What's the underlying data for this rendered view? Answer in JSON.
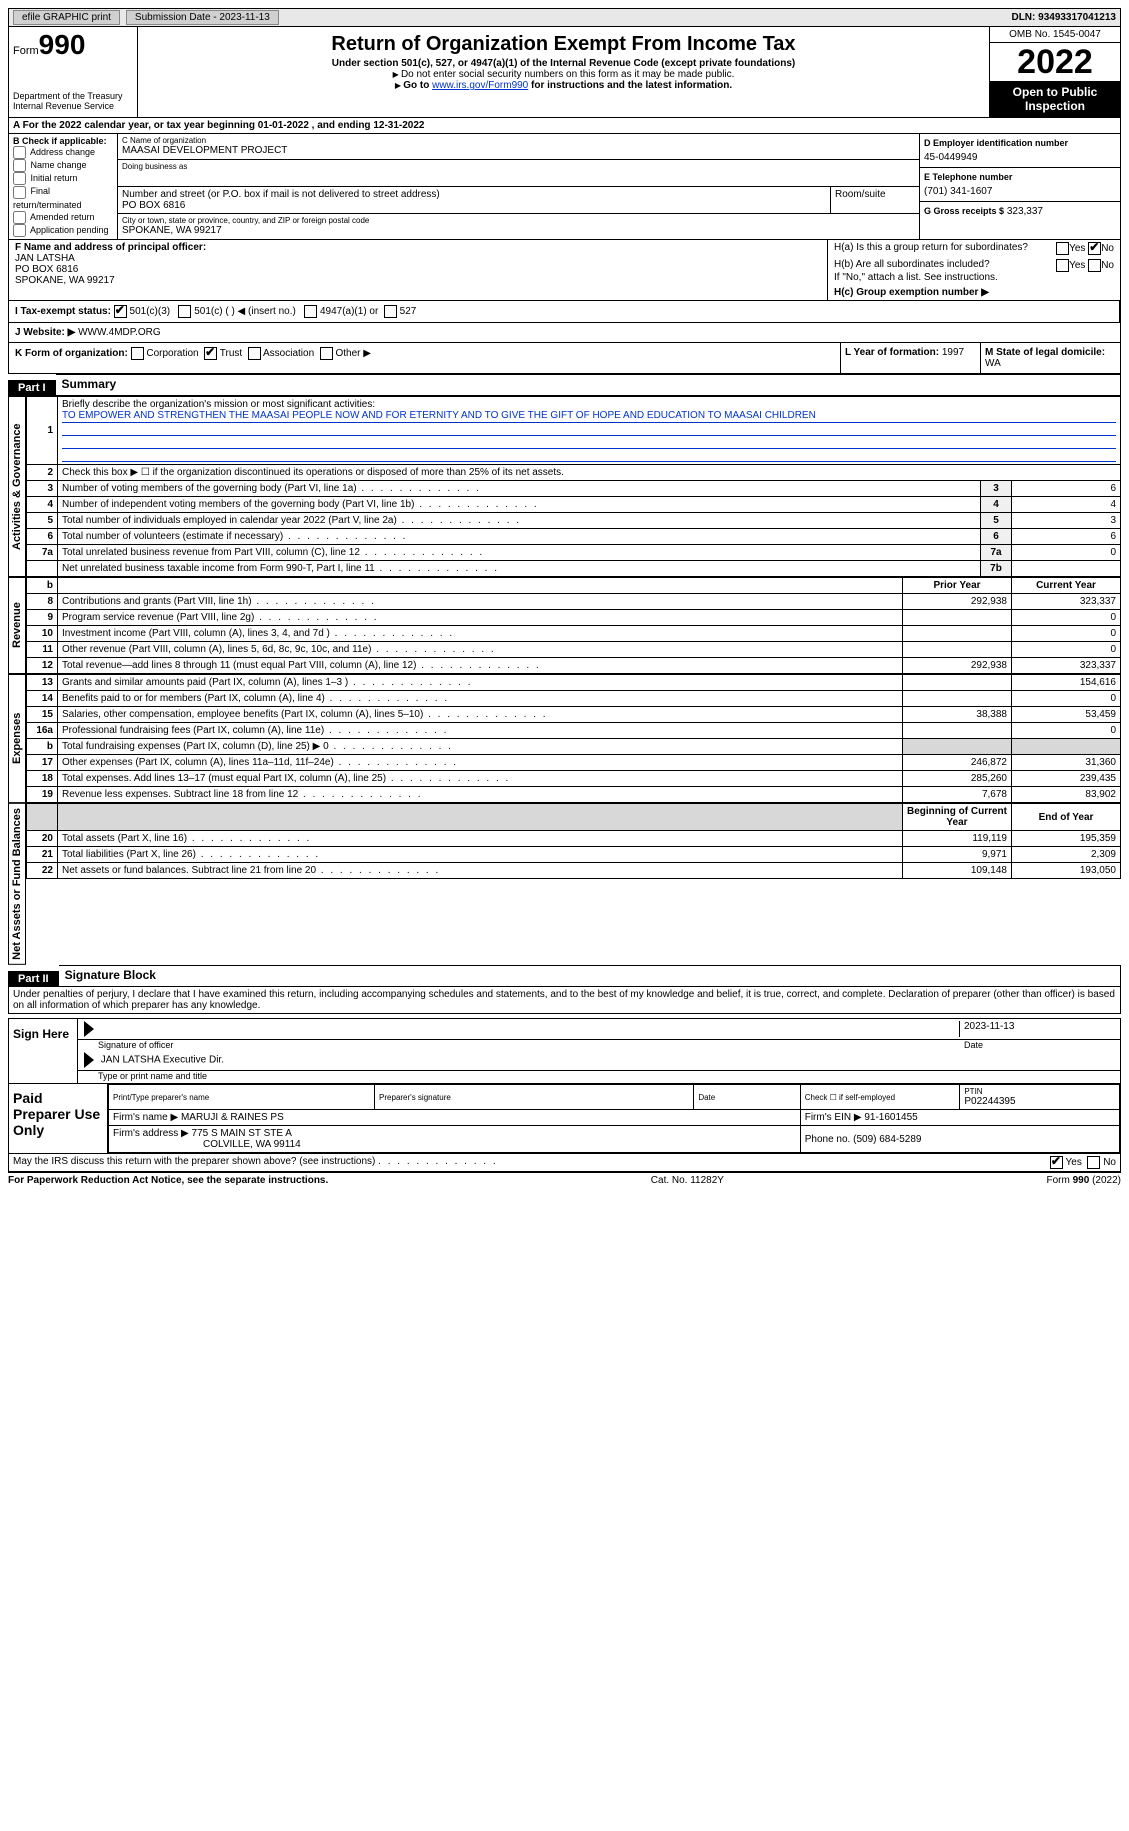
{
  "topbar": {
    "efile": "efile GRAPHIC print",
    "submission": "Submission Date - 2023-11-13",
    "dln": "DLN: 93493317041213"
  },
  "header": {
    "form_label": "Form",
    "form_num": "990",
    "dept": "Department of the Treasury",
    "irs": "Internal Revenue Service",
    "title": "Return of Organization Exempt From Income Tax",
    "subtitle": "Under section 501(c), 527, or 4947(a)(1) of the Internal Revenue Code (except private foundations)",
    "note1": "Do not enter social security numbers on this form as it may be made public.",
    "note2_pre": "Go to ",
    "note2_link": "www.irs.gov/Form990",
    "note2_post": " for instructions and the latest information.",
    "omb": "OMB No. 1545-0047",
    "year": "2022",
    "inspect": "Open to Public Inspection"
  },
  "row_a": "A For the 2022 calendar year, or tax year beginning 01-01-2022    , and ending 12-31-2022",
  "col_b": {
    "hdr": "B Check if applicable:",
    "items": [
      "Address change",
      "Name change",
      "Initial return",
      "Final return/terminated",
      "Amended return",
      "Application pending"
    ]
  },
  "col_c": {
    "name_lbl": "C Name of organization",
    "name": "MAASAI DEVELOPMENT PROJECT",
    "dba_lbl": "Doing business as",
    "dba": "",
    "addr_lbl": "Number and street (or P.O. box if mail is not delivered to street address)",
    "room_lbl": "Room/suite",
    "addr": "PO BOX 6816",
    "city_lbl": "City or town, state or province, country, and ZIP or foreign postal code",
    "city": "SPOKANE, WA  99217"
  },
  "col_d": {
    "ein_lbl": "D Employer identification number",
    "ein": "45-0449949",
    "tel_lbl": "E Telephone number",
    "tel": "(701) 341-1607",
    "gross_lbl": "G Gross receipts $",
    "gross": "323,337"
  },
  "row_f": {
    "lbl": "F Name and address of principal officer:",
    "name": "JAN LATSHA",
    "addr1": "PO BOX 6816",
    "addr2": "SPOKANE, WA  99217"
  },
  "row_h": {
    "ha": "H(a)  Is this a group return for subordinates?",
    "hb": "H(b)  Are all subordinates included?",
    "hb_note": "If \"No,\" attach a list. See instructions.",
    "hc": "H(c)  Group exemption number ▶"
  },
  "row_i": {
    "lbl": "I  Tax-exempt status:",
    "opts": [
      "501(c)(3)",
      "501(c) (  ) ◀ (insert no.)",
      "4947(a)(1) or",
      "527"
    ]
  },
  "row_j": {
    "lbl": "J  Website: ▶",
    "val": "WWW.4MDP.ORG"
  },
  "row_k": {
    "lbl": "K Form of organization:",
    "opts": [
      "Corporation",
      "Trust",
      "Association",
      "Other ▶"
    ],
    "l_lbl": "L Year of formation:",
    "l_val": "1997",
    "m_lbl": "M State of legal domicile:",
    "m_val": "WA"
  },
  "part1": {
    "hdr": "Part I",
    "title": "Summary",
    "vlabel1": "Activities & Governance",
    "vlabel2": "Revenue",
    "vlabel3": "Expenses",
    "vlabel4": "Net Assets or Fund Balances",
    "line1": "Briefly describe the organization's mission or most significant activities:",
    "mission": "TO EMPOWER AND STRENGTHEN THE MAASAI PEOPLE NOW AND FOR ETERNITY AND TO GIVE THE GIFT OF HOPE AND EDUCATION TO MAASAI CHILDREN",
    "line2": "Check this box ▶ ☐ if the organization discontinued its operations or disposed of more than 25% of its net assets.",
    "rows_ag": [
      {
        "n": "3",
        "d": "Number of voting members of the governing body (Part VI, line 1a)",
        "box": "3",
        "v": "6"
      },
      {
        "n": "4",
        "d": "Number of independent voting members of the governing body (Part VI, line 1b)",
        "box": "4",
        "v": "4"
      },
      {
        "n": "5",
        "d": "Total number of individuals employed in calendar year 2022 (Part V, line 2a)",
        "box": "5",
        "v": "3"
      },
      {
        "n": "6",
        "d": "Total number of volunteers (estimate if necessary)",
        "box": "6",
        "v": "6"
      },
      {
        "n": "7a",
        "d": "Total unrelated business revenue from Part VIII, column (C), line 12",
        "box": "7a",
        "v": "0"
      },
      {
        "n": "",
        "d": "Net unrelated business taxable income from Form 990-T, Part I, line 11",
        "box": "7b",
        "v": ""
      }
    ],
    "hdr_prior": "Prior Year",
    "hdr_curr": "Current Year",
    "rows_rev": [
      {
        "n": "8",
        "d": "Contributions and grants (Part VIII, line 1h)",
        "p": "292,938",
        "c": "323,337"
      },
      {
        "n": "9",
        "d": "Program service revenue (Part VIII, line 2g)",
        "p": "",
        "c": "0"
      },
      {
        "n": "10",
        "d": "Investment income (Part VIII, column (A), lines 3, 4, and 7d )",
        "p": "",
        "c": "0"
      },
      {
        "n": "11",
        "d": "Other revenue (Part VIII, column (A), lines 5, 6d, 8c, 9c, 10c, and 11e)",
        "p": "",
        "c": "0"
      },
      {
        "n": "12",
        "d": "Total revenue—add lines 8 through 11 (must equal Part VIII, column (A), line 12)",
        "p": "292,938",
        "c": "323,337"
      }
    ],
    "rows_exp": [
      {
        "n": "13",
        "d": "Grants and similar amounts paid (Part IX, column (A), lines 1–3 )",
        "p": "",
        "c": "154,616"
      },
      {
        "n": "14",
        "d": "Benefits paid to or for members (Part IX, column (A), line 4)",
        "p": "",
        "c": "0"
      },
      {
        "n": "15",
        "d": "Salaries, other compensation, employee benefits (Part IX, column (A), lines 5–10)",
        "p": "38,388",
        "c": "53,459"
      },
      {
        "n": "16a",
        "d": "Professional fundraising fees (Part IX, column (A), line 11e)",
        "p": "",
        "c": "0"
      },
      {
        "n": "b",
        "d": "Total fundraising expenses (Part IX, column (D), line 25) ▶ 0",
        "p": "shade",
        "c": "shade"
      },
      {
        "n": "17",
        "d": "Other expenses (Part IX, column (A), lines 11a–11d, 11f–24e)",
        "p": "246,872",
        "c": "31,360"
      },
      {
        "n": "18",
        "d": "Total expenses. Add lines 13–17 (must equal Part IX, column (A), line 25)",
        "p": "285,260",
        "c": "239,435"
      },
      {
        "n": "19",
        "d": "Revenue less expenses. Subtract line 18 from line 12",
        "p": "7,678",
        "c": "83,902"
      }
    ],
    "hdr_begin": "Beginning of Current Year",
    "hdr_end": "End of Year",
    "rows_net": [
      {
        "n": "20",
        "d": "Total assets (Part X, line 16)",
        "p": "119,119",
        "c": "195,359"
      },
      {
        "n": "21",
        "d": "Total liabilities (Part X, line 26)",
        "p": "9,971",
        "c": "2,309"
      },
      {
        "n": "22",
        "d": "Net assets or fund balances. Subtract line 21 from line 20",
        "p": "109,148",
        "c": "193,050"
      }
    ]
  },
  "part2": {
    "hdr": "Part II",
    "title": "Signature Block",
    "decl": "Under penalties of perjury, I declare that I have examined this return, including accompanying schedules and statements, and to the best of my knowledge and belief, it is true, correct, and complete. Declaration of preparer (other than officer) is based on all information of which preparer has any knowledge.",
    "sign_here": "Sign Here",
    "sig_officer": "Signature of officer",
    "sig_date": "2023-11-13",
    "date_lbl": "Date",
    "sig_name": "JAN LATSHA Executive Dir.",
    "sig_name_lbl": "Type or print name and title",
    "paid": "Paid Preparer Use Only",
    "prep_name_lbl": "Print/Type preparer's name",
    "prep_sig_lbl": "Preparer's signature",
    "prep_date_lbl": "Date",
    "check_self": "Check ☐ if self-employed",
    "ptin_lbl": "PTIN",
    "ptin": "P02244395",
    "firm_name_lbl": "Firm's name    ▶",
    "firm_name": "MARUJI & RAINES PS",
    "firm_ein_lbl": "Firm's EIN ▶",
    "firm_ein": "91-1601455",
    "firm_addr_lbl": "Firm's address ▶",
    "firm_addr": "775 S MAIN ST STE A",
    "firm_city": "COLVILLE, WA  99114",
    "phone_lbl": "Phone no.",
    "phone": "(509) 684-5289",
    "discuss": "May the IRS discuss this return with the preparer shown above? (see instructions)",
    "yes": "Yes",
    "no": "No"
  },
  "footer": {
    "left": "For Paperwork Reduction Act Notice, see the separate instructions.",
    "mid": "Cat. No. 11282Y",
    "right": "Form 990 (2022)"
  }
}
